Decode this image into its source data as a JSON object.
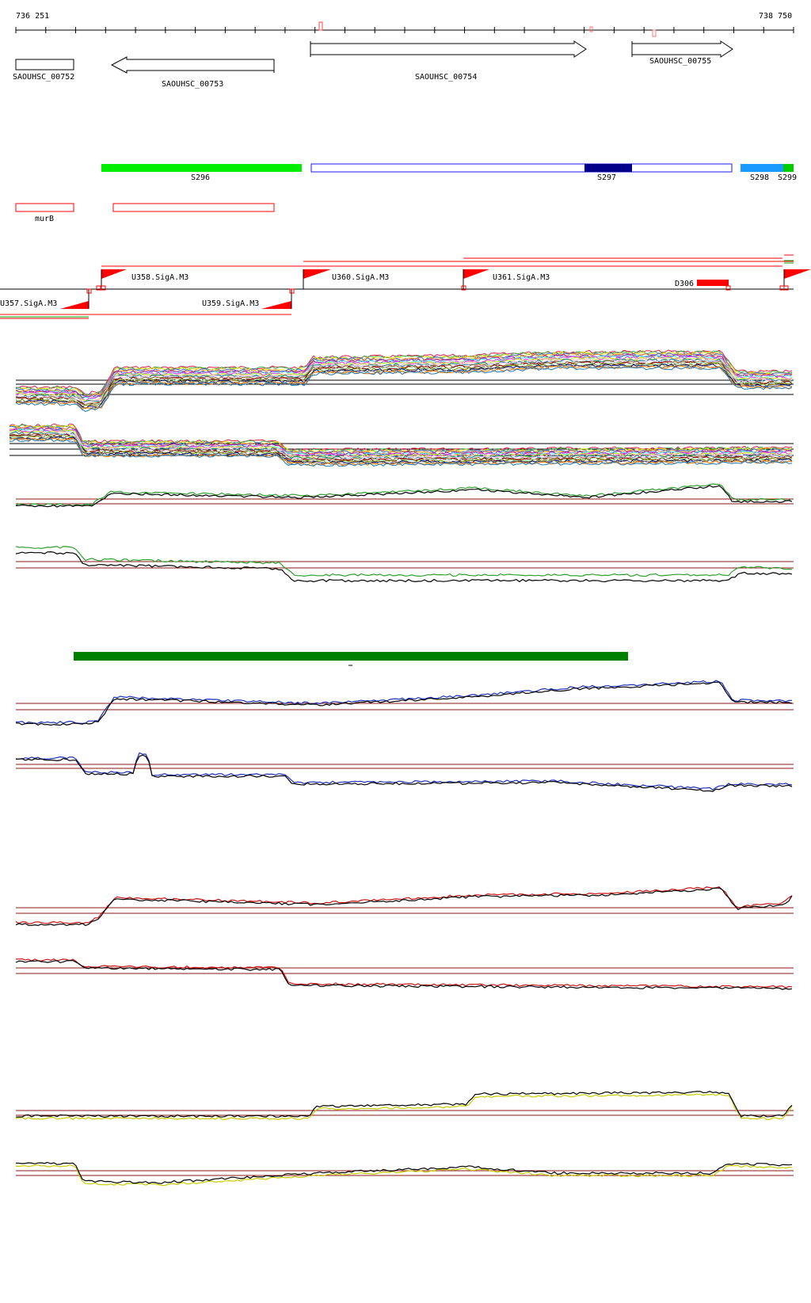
{
  "ruler": {
    "start_label": "736 251",
    "end_label": "738 750",
    "start_bp": 736251,
    "end_bp": 738750
  },
  "genes": [
    {
      "label": "SAOUHSC_00752",
      "strand": "none"
    },
    {
      "label": "SAOUHSC_00753",
      "strand": "-"
    },
    {
      "label": "SAOUHSC_00754",
      "strand": "+"
    },
    {
      "label": "SAOUHSC_00755",
      "strand": "+"
    }
  ],
  "segments": [
    {
      "label": "S296",
      "color": "#00ee00"
    },
    {
      "label": "S297",
      "color": "#1a1aff",
      "highlight_color": "#00008b"
    },
    {
      "label": "S298",
      "color": "#1a9aff"
    },
    {
      "label": "S299",
      "color": "#00cc00"
    }
  ],
  "annotations": [
    {
      "label": "murB",
      "color": "#ff0000"
    }
  ],
  "promoters": [
    {
      "label": "U357.SigA.M3"
    },
    {
      "label": "U358.SigA.M3"
    },
    {
      "label": "U359.SigA.M3"
    },
    {
      "label": "U360.SigA.M3"
    },
    {
      "label": "U361.SigA.M3"
    },
    {
      "label": "D306"
    }
  ],
  "colors": {
    "promoter": "#ff0000",
    "green_track": "#2e9e2e",
    "blue_track": "#1c2fb8",
    "red_track": "#cc1111",
    "yellow_track": "#c8cc00",
    "threshold": "#8b1a1a",
    "dark_green_bar": "#008000"
  },
  "tracks": [
    {
      "name": "multi-condition-forward"
    },
    {
      "name": "multi-condition-reverse"
    },
    {
      "name": "green-forward"
    },
    {
      "name": "green-reverse"
    },
    {
      "name": "blue-forward"
    },
    {
      "name": "blue-reverse"
    },
    {
      "name": "red-forward"
    },
    {
      "name": "red-reverse"
    },
    {
      "name": "yellow-forward"
    },
    {
      "name": "yellow-reverse"
    }
  ]
}
